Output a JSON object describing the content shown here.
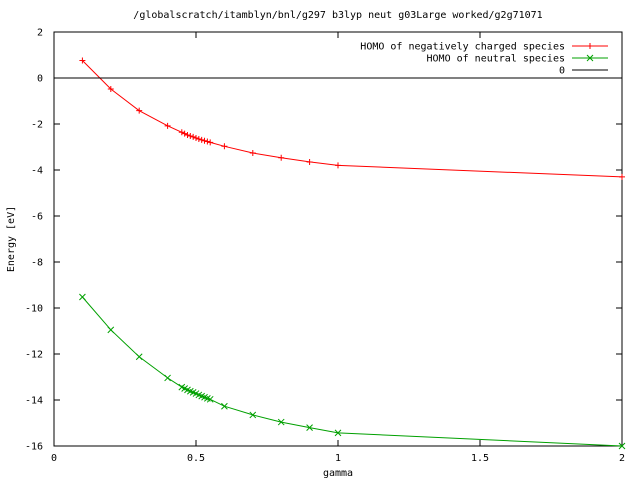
{
  "chart_data": {
    "type": "line",
    "title": "/globalscratch/itamblyn/bnl/g297 b3lyp neut g03Large worked/g2g71071",
    "xlabel": "gamma",
    "ylabel": "Energy [eV]",
    "xlim": [
      0,
      2
    ],
    "ylim": [
      -16,
      2
    ],
    "xticks": [
      0,
      0.5,
      1,
      1.5,
      2
    ],
    "xtick_labels": [
      "0",
      "0.5",
      "1",
      "1.5",
      "2"
    ],
    "yticks": [
      2,
      0,
      -2,
      -4,
      -6,
      -8,
      -10,
      -12,
      -14,
      -16
    ],
    "ytick_labels": [
      "2",
      "0",
      "-2",
      "-4",
      "-6",
      "-8",
      "-10",
      "-12",
      "-14",
      "-16"
    ],
    "grid": false,
    "legend_position": "top-right",
    "series": [
      {
        "name": "HOMO of negatively charged species",
        "color": "#ff0000",
        "marker": "plus",
        "x": [
          0.1,
          0.2,
          0.3,
          0.4,
          0.45,
          0.46,
          0.47,
          0.48,
          0.49,
          0.5,
          0.51,
          0.52,
          0.53,
          0.54,
          0.55,
          0.6,
          0.7,
          0.8,
          0.9,
          1.0,
          2.0
        ],
        "y": [
          0.76,
          -0.48,
          -1.42,
          -2.08,
          -2.36,
          -2.42,
          -2.48,
          -2.52,
          -2.56,
          -2.61,
          -2.65,
          -2.69,
          -2.73,
          -2.76,
          -2.8,
          -2.97,
          -3.26,
          -3.47,
          -3.65,
          -3.8,
          -4.3
        ]
      },
      {
        "name": "HOMO of neutral species",
        "color": "#00a000",
        "marker": "x",
        "x": [
          0.1,
          0.2,
          0.3,
          0.4,
          0.45,
          0.46,
          0.47,
          0.48,
          0.49,
          0.5,
          0.51,
          0.52,
          0.53,
          0.54,
          0.55,
          0.6,
          0.7,
          0.8,
          0.9,
          1.0,
          2.0
        ],
        "y": [
          -9.52,
          -10.95,
          -12.12,
          -13.04,
          -13.44,
          -13.5,
          -13.56,
          -13.62,
          -13.67,
          -13.72,
          -13.78,
          -13.83,
          -13.88,
          -13.93,
          -13.97,
          -14.27,
          -14.65,
          -14.96,
          -15.2,
          -15.43,
          -16.0
        ]
      },
      {
        "name": "0",
        "color": "#000000",
        "marker": "none",
        "x": [
          0,
          2
        ],
        "y": [
          0,
          0
        ]
      }
    ]
  }
}
